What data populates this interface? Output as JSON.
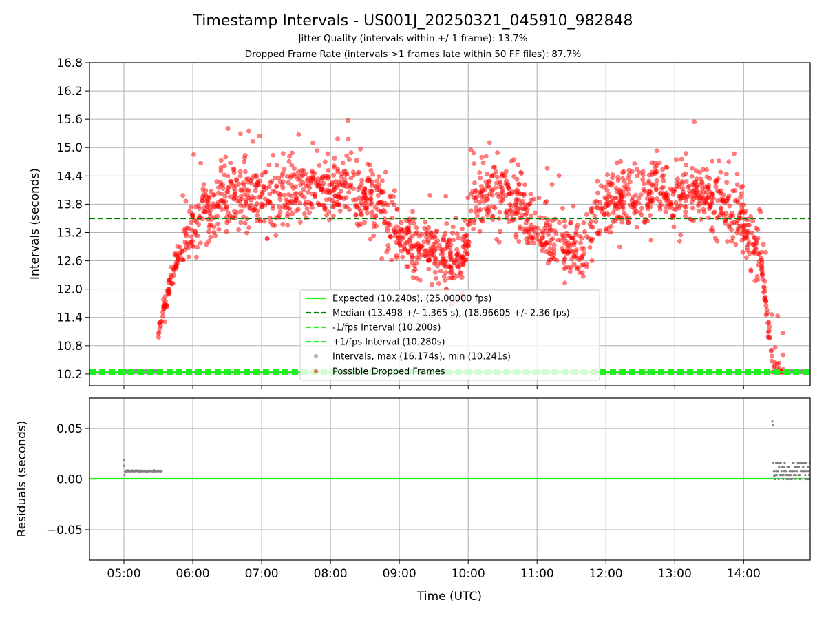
{
  "chart_data": [
    {
      "type": "scatter",
      "title": "Timestamp Intervals - US001J_20250321_045910_982848",
      "subtitle_1": "Jitter Quality (intervals within +/-1 frame): 13.7%",
      "subtitle_2": "Dropped Frame Rate (intervals >1 frames late within 50 FF files): 87.7%",
      "xlabel": "",
      "ylabel": "Intervals (seconds)",
      "xlim": [
        "04:30",
        "14:58"
      ],
      "ylim": [
        9.95,
        16.8
      ],
      "x_ticks": [
        "05:00",
        "06:00",
        "07:00",
        "08:00",
        "09:00",
        "10:00",
        "11:00",
        "12:00",
        "13:00",
        "14:00"
      ],
      "y_ticks": [
        10.2,
        10.8,
        11.4,
        12.0,
        12.6,
        13.2,
        13.8,
        14.4,
        15.0,
        15.6,
        16.2,
        16.8
      ],
      "y_tick_labels": [
        "10.2",
        "10.8",
        "11.4",
        "12.0",
        "12.6",
        "13.2",
        "13.8",
        "14.4",
        "15.0",
        "15.6",
        "16.2",
        "16.8"
      ],
      "grid": true,
      "legend_position": "lower-center",
      "legend": [
        {
          "label": "Expected (10.240s), (25.00000 fps)",
          "kind": "line",
          "color": "#22ee22",
          "dash": "solid"
        },
        {
          "label": "Median (13.498 +/- 1.365 s), (18.96605 +/- 2.36 fps)",
          "kind": "line",
          "color": "#008000",
          "dash": "dashed"
        },
        {
          "label": "-1/fps Interval (10.200s)",
          "kind": "line",
          "color": "#22ee22",
          "dash": "dashed"
        },
        {
          "label": "+1/fps Interval (10.280s)",
          "kind": "line",
          "color": "#22ee22",
          "dash": "dashed"
        },
        {
          "label": "Intervals, max (16.174s), min (10.241s)",
          "kind": "marker",
          "color": "#808080"
        },
        {
          "label": "Possible Dropped Frames",
          "kind": "marker",
          "color": "#ff0000"
        }
      ],
      "reference_lines": {
        "expected": 10.24,
        "median": 13.498,
        "minus_one_frame": 10.2,
        "plus_one_frame": 10.28
      },
      "series_envelope": {
        "name": "Possible Dropped Frames",
        "color": "#ff0000",
        "time_points": [
          "05:30",
          "05:35",
          "05:40",
          "05:45",
          "05:50",
          "06:00",
          "06:10",
          "06:30",
          "07:00",
          "07:30",
          "08:00",
          "08:20",
          "08:40",
          "08:50",
          "09:00",
          "09:20",
          "09:40",
          "09:55",
          "10:00",
          "10:05",
          "10:20",
          "10:40",
          "10:55",
          "11:10",
          "11:30",
          "11:40",
          "11:50",
          "12:00",
          "12:30",
          "13:00",
          "13:20",
          "13:40",
          "13:55",
          "14:05",
          "14:15",
          "14:20",
          "14:25",
          "14:30",
          "14:35"
        ],
        "median_values": [
          11.0,
          11.6,
          12.05,
          12.55,
          12.85,
          13.3,
          13.7,
          13.9,
          14.0,
          14.05,
          14.1,
          14.1,
          14.0,
          13.5,
          13.05,
          12.95,
          12.6,
          12.7,
          13.0,
          13.9,
          14.05,
          13.85,
          13.4,
          13.05,
          12.85,
          12.9,
          13.4,
          13.9,
          14.0,
          14.05,
          13.95,
          13.85,
          13.6,
          13.0,
          12.6,
          11.6,
          10.45,
          10.26,
          10.24
        ],
        "spread": 0.34,
        "approx_points": 1900
      },
      "series_gray": {
        "name": "Intervals",
        "color": "#808080",
        "ranges": [
          [
            "04:59",
            "05:30",
            10.25
          ],
          [
            "14:36",
            "14:58",
            10.25
          ]
        ]
      }
    },
    {
      "type": "scatter",
      "xlabel": "Time (UTC)",
      "ylabel": "Residuals (seconds)",
      "xlim": [
        "04:30",
        "14:58"
      ],
      "ylim": [
        -0.08,
        0.08
      ],
      "x_ticks": [
        "05:00",
        "06:00",
        "07:00",
        "08:00",
        "09:00",
        "10:00",
        "11:00",
        "12:00",
        "13:00",
        "14:00"
      ],
      "y_ticks": [
        -0.05,
        0.0,
        0.05
      ],
      "y_tick_labels": [
        "−0.05",
        "0.00",
        "0.05"
      ],
      "grid": true,
      "zero_line_color": "#22ee22",
      "series": [
        {
          "name": "residuals-early",
          "color": "#808080",
          "range": [
            "05:00",
            "05:33"
          ],
          "value": 0.008,
          "outliers": [
            0.019,
            0.013,
            0.004
          ]
        },
        {
          "name": "residuals-late",
          "color": "#808080",
          "range": [
            "14:25",
            "14:58"
          ],
          "levels": [
            0.0,
            0.004,
            0.008,
            0.012,
            0.016
          ],
          "outliers": [
            0.057,
            0.053,
            0.003
          ]
        }
      ]
    }
  ]
}
